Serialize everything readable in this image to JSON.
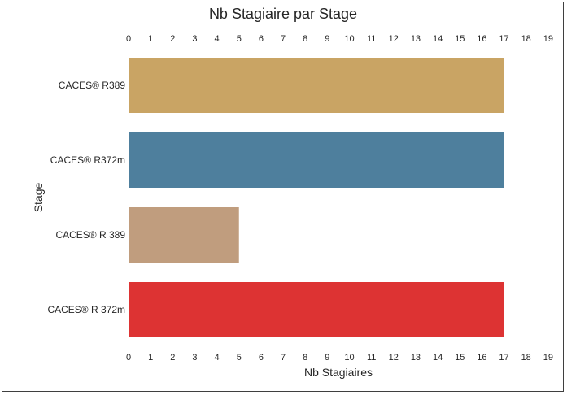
{
  "chart_data": {
    "type": "bar",
    "orientation": "horizontal",
    "title": "Nb Stagiaire par Stage",
    "xlabel": "Nb Stagiaires",
    "ylabel": "Stage",
    "categories": [
      "CACES® R389",
      "CACES® R372m",
      "CACES® R 389",
      "CACES® R 372m"
    ],
    "values": [
      17,
      17,
      5,
      17
    ],
    "colors": [
      "#c9a464",
      "#4e7f9d",
      "#c09d7e",
      "#dd3333"
    ],
    "xlim": [
      0,
      19
    ],
    "xticks": [
      "0",
      "1",
      "2",
      "3",
      "4",
      "5",
      "6",
      "7",
      "8",
      "9",
      "10",
      "11",
      "12",
      "13",
      "14",
      "15",
      "16",
      "17",
      "18",
      "19"
    ],
    "xaxis_ticks_top": true,
    "xaxis_ticks_bottom": true,
    "grid": false,
    "legend": false
  }
}
